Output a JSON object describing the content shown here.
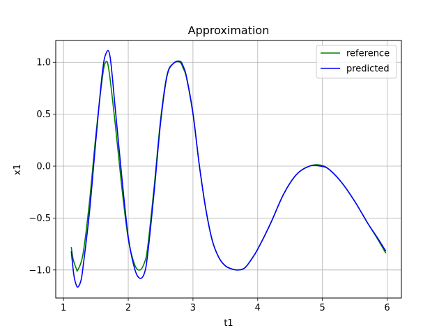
{
  "chart_data": {
    "type": "line",
    "title": "Approximation",
    "xlabel": "t1",
    "ylabel": "x1",
    "xlim": [
      0.88,
      6.22
    ],
    "ylim": [
      -1.27,
      1.21
    ],
    "xticks": [
      1,
      2,
      3,
      4,
      5,
      6
    ],
    "xtick_labels": [
      "1",
      "2",
      "3",
      "4",
      "5",
      "6"
    ],
    "yticks": [
      -1.0,
      -0.5,
      0.0,
      0.5,
      1.0
    ],
    "ytick_labels": [
      "−1.0",
      "−0.5",
      "0.0",
      "0.5",
      "1.0"
    ],
    "grid": true,
    "legend_position": "top-right",
    "series": [
      {
        "name": "reference",
        "color": "#008000",
        "x": [
          1.12,
          1.15,
          1.2,
          1.22,
          1.3,
          1.4,
          1.5,
          1.6,
          1.65,
          1.7,
          1.8,
          1.9,
          2.0,
          2.1,
          2.18,
          2.25,
          2.3,
          2.4,
          2.5,
          2.6,
          2.7,
          2.8,
          2.85,
          2.9,
          3.0,
          3.1,
          3.2,
          3.3,
          3.4,
          3.5,
          3.6,
          3.7,
          3.8,
          3.9,
          4.0,
          4.2,
          4.4,
          4.6,
          4.8,
          4.97,
          5.1,
          5.3,
          5.5,
          5.7,
          5.85,
          5.98
        ],
        "y": [
          -0.78,
          -0.9,
          -0.99,
          -1.0,
          -0.85,
          -0.35,
          0.3,
          0.85,
          1.0,
          0.93,
          0.4,
          -0.2,
          -0.7,
          -0.95,
          -1.0,
          -0.93,
          -0.78,
          -0.2,
          0.45,
          0.88,
          0.99,
          1.0,
          0.94,
          0.85,
          0.5,
          0.0,
          -0.42,
          -0.72,
          -0.88,
          -0.96,
          -0.99,
          -1.0,
          -0.98,
          -0.9,
          -0.8,
          -0.55,
          -0.27,
          -0.08,
          0.0,
          0.01,
          -0.03,
          -0.16,
          -0.34,
          -0.55,
          -0.7,
          -0.84
        ]
      },
      {
        "name": "predicted",
        "color": "#0000ff",
        "x": [
          1.12,
          1.16,
          1.2,
          1.23,
          1.27,
          1.3,
          1.4,
          1.5,
          1.6,
          1.66,
          1.72,
          1.8,
          1.9,
          2.0,
          2.1,
          2.18,
          2.25,
          2.3,
          2.4,
          2.5,
          2.6,
          2.7,
          2.8,
          2.85,
          2.9,
          3.0,
          3.1,
          3.2,
          3.3,
          3.4,
          3.5,
          3.6,
          3.7,
          3.8,
          3.9,
          4.0,
          4.2,
          4.4,
          4.6,
          4.8,
          4.97,
          5.1,
          5.3,
          5.5,
          5.7,
          5.85,
          5.98
        ],
        "y": [
          -0.82,
          -1.05,
          -1.15,
          -1.16,
          -1.1,
          -0.98,
          -0.45,
          0.25,
          0.9,
          1.09,
          1.05,
          0.55,
          -0.1,
          -0.68,
          -0.99,
          -1.08,
          -1.03,
          -0.85,
          -0.25,
          0.42,
          0.87,
          0.99,
          1.01,
          0.96,
          0.86,
          0.51,
          0.0,
          -0.42,
          -0.72,
          -0.88,
          -0.96,
          -0.99,
          -1.0,
          -0.98,
          -0.9,
          -0.8,
          -0.55,
          -0.27,
          -0.08,
          0.0,
          0.0,
          -0.03,
          -0.16,
          -0.34,
          -0.55,
          -0.69,
          -0.82
        ]
      }
    ]
  }
}
